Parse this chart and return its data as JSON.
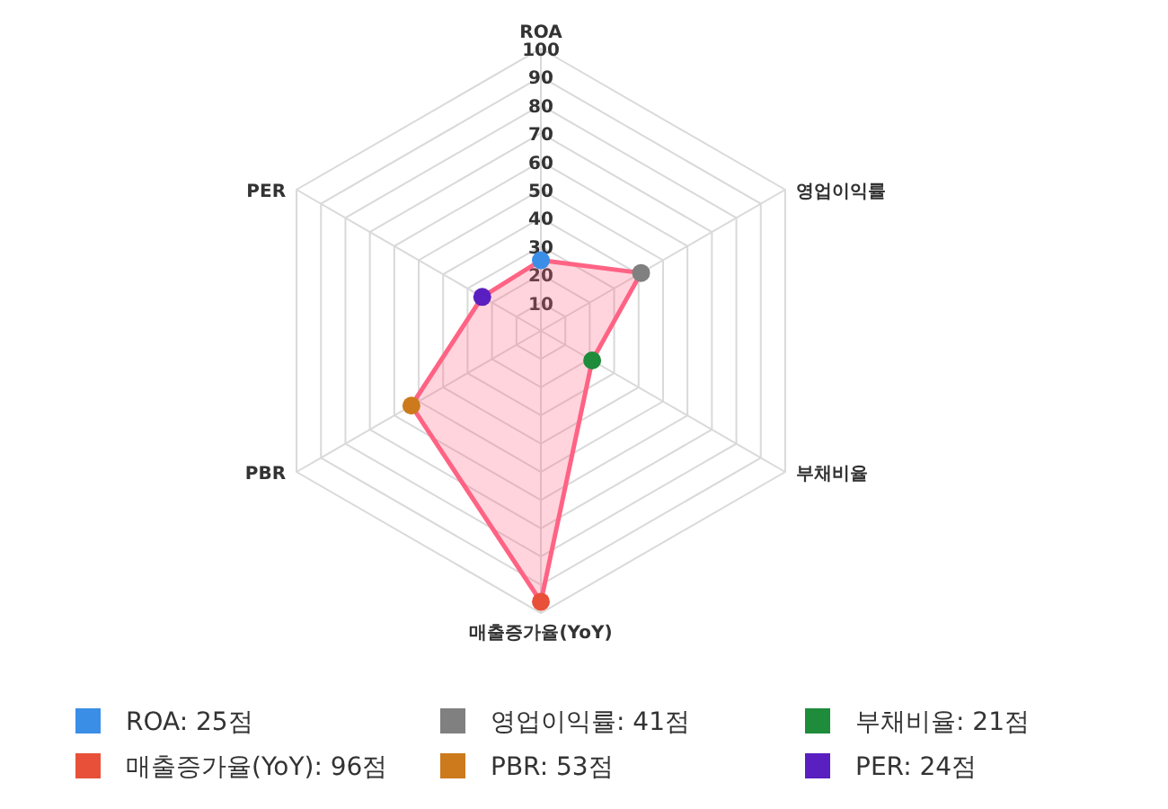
{
  "chart_data": {
    "type": "radar",
    "categories": [
      "ROA",
      "영업이익률",
      "부채비율",
      "매출증가율(YoY)",
      "PBR",
      "PER"
    ],
    "series": [
      {
        "color": "#ff6384",
        "values": [
          25,
          41,
          21,
          96,
          53,
          24
        ],
        "colors": [
          "#3a8ee6",
          "#808080",
          "#1e8c3a",
          "#e8503a",
          "#cc7a1c",
          "#5a1fc0"
        ]
      }
    ],
    "annotations": [
      "ROA: 25점",
      "영업이익률: 41점",
      "부채비율: 21점",
      "매출증가율(YoY): 96점",
      "PBR: 53점",
      "PER: 24점"
    ],
    "ylim": [
      0,
      100
    ],
    "yticks": [
      10,
      20,
      30,
      40,
      50,
      60,
      70,
      80,
      90,
      100
    ],
    "grid": true,
    "marker": "circle"
  }
}
